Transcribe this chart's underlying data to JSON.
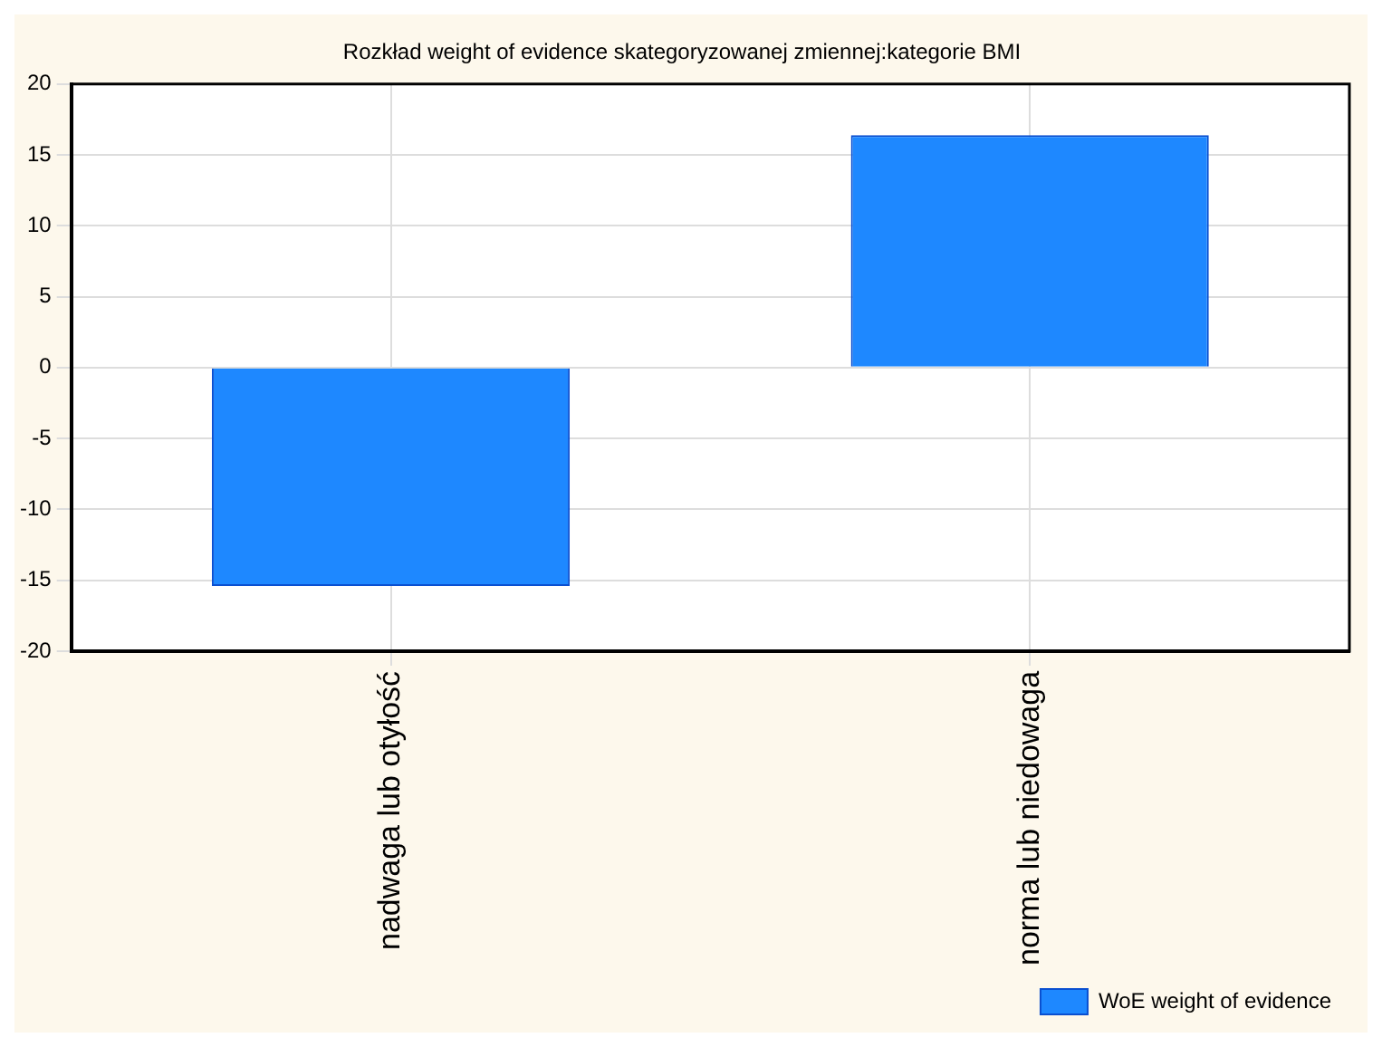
{
  "chart_data": {
    "type": "bar",
    "title": "Rozkład weight of evidence skategoryzowanej zmiennej:kategorie BMI",
    "categories": [
      "nadwaga lub otyłość",
      "norma lub niedowaga"
    ],
    "series": [
      {
        "name": "WoE weight of evidence",
        "color": "#1e88ff",
        "values": [
          -15.4,
          16.4
        ]
      }
    ],
    "ylim": [
      -20,
      20
    ],
    "yticks": [
      -20,
      -15,
      -10,
      -5,
      0,
      5,
      10,
      15,
      20
    ],
    "grid": true,
    "legend": "bottom right"
  }
}
